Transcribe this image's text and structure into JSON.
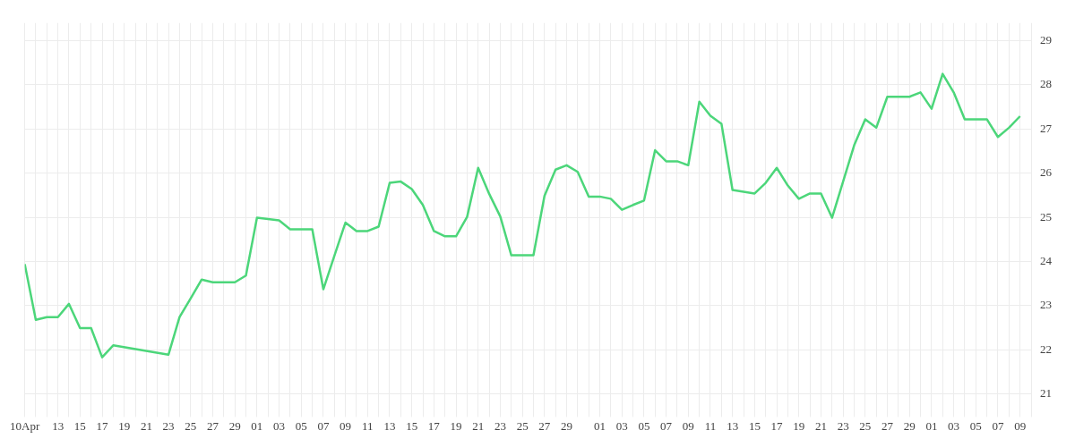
{
  "chart_data": {
    "type": "line",
    "x": [
      "--04-10",
      "--04-11",
      "--04-12",
      "--04-13",
      "--04-14",
      "--04-15",
      "--04-16",
      "--04-17",
      "--04-18",
      "--04-23",
      "--04-24",
      "--04-25",
      "--04-26",
      "--04-27",
      "--04-28",
      "--04-29",
      "--04-30",
      "--05-01",
      "--05-03",
      "--05-04",
      "--05-05",
      "--05-06",
      "--05-07",
      "--05-08",
      "--05-09",
      "--05-10",
      "--05-11",
      "--05-12",
      "--05-13",
      "--05-14",
      "--05-15",
      "--05-16",
      "--05-17",
      "--05-18",
      "--05-19",
      "--05-20",
      "--05-21",
      "--05-22",
      "--05-23",
      "--05-24",
      "--05-25",
      "--05-26",
      "--05-27",
      "--05-28",
      "--05-29",
      "--05-30",
      "--05-31",
      "--06-01",
      "--06-02",
      "--06-03",
      "--06-04",
      "--06-05",
      "--06-06",
      "--06-07",
      "--06-08",
      "--06-09",
      "--06-10",
      "--06-11",
      "--06-12",
      "--06-13",
      "--06-14",
      "--06-15",
      "--06-16",
      "--06-17",
      "--06-18",
      "--06-19",
      "--06-20",
      "--06-21",
      "--06-22",
      "--06-23",
      "--06-24",
      "--06-25",
      "--06-26",
      "--06-27",
      "--06-28",
      "--06-29",
      "--06-30",
      "--07-01",
      "--07-02",
      "--07-03",
      "--07-04",
      "--07-05",
      "--07-06",
      "--07-07",
      "--07-08",
      "--07-09"
    ],
    "series": [
      {
        "color": "#4cd67a",
        "values": [
          23.94,
          22.68,
          22.74,
          22.74,
          23.04,
          22.49,
          22.49,
          21.83,
          22.1,
          21.89,
          22.74,
          23.16,
          23.59,
          23.53,
          23.53,
          23.53,
          23.68,
          24.99,
          24.93,
          24.73,
          24.73,
          24.73,
          23.37,
          24.13,
          24.88,
          24.69,
          24.69,
          24.79,
          25.78,
          25.81,
          25.64,
          25.28,
          24.69,
          24.57,
          24.57,
          25.01,
          26.12,
          25.53,
          25.02,
          24.14,
          24.14,
          24.14,
          25.49,
          26.08,
          26.18,
          26.03,
          25.47,
          25.47,
          25.42,
          25.17,
          25.28,
          25.38,
          26.52,
          26.27,
          26.27,
          26.18,
          27.62,
          27.3,
          27.12,
          25.62,
          25.58,
          25.54,
          25.78,
          26.12,
          25.72,
          25.42,
          25.54,
          25.54,
          24.99,
          25.81,
          26.63,
          27.22,
          27.03,
          27.73,
          27.73,
          27.73,
          27.83,
          27.46,
          28.25,
          27.83,
          27.22,
          27.22,
          27.22,
          26.82,
          27.03,
          27.29
        ]
      }
    ],
    "xlim": [
      "--04-10",
      "--07-10"
    ],
    "xticks": [
      {
        "value": "--04-10",
        "label": "10Apr"
      },
      {
        "value": "--04-11",
        "label": null
      },
      {
        "value": "--04-12",
        "label": null
      },
      {
        "value": "--04-13",
        "label": "13"
      },
      {
        "value": "--04-14",
        "label": null
      },
      {
        "value": "--04-15",
        "label": "15"
      },
      {
        "value": "--04-16",
        "label": null
      },
      {
        "value": "--04-17",
        "label": "17"
      },
      {
        "value": "--04-18",
        "label": null
      },
      {
        "value": "--04-19",
        "label": "19"
      },
      {
        "value": "--04-20",
        "label": null
      },
      {
        "value": "--04-21",
        "label": "21"
      },
      {
        "value": "--04-22",
        "label": null
      },
      {
        "value": "--04-23",
        "label": "23"
      },
      {
        "value": "--04-24",
        "label": null
      },
      {
        "value": "--04-25",
        "label": "25"
      },
      {
        "value": "--04-26",
        "label": null
      },
      {
        "value": "--04-27",
        "label": "27"
      },
      {
        "value": "--04-28",
        "label": null
      },
      {
        "value": "--04-29",
        "label": "29"
      },
      {
        "value": "--04-30",
        "label": null
      },
      {
        "value": "--05-01",
        "label": "01"
      },
      {
        "value": "--05-02",
        "label": null
      },
      {
        "value": "--05-03",
        "label": "03"
      },
      {
        "value": "--05-04",
        "label": null
      },
      {
        "value": "--05-05",
        "label": "05"
      },
      {
        "value": "--05-06",
        "label": null
      },
      {
        "value": "--05-07",
        "label": "07"
      },
      {
        "value": "--05-08",
        "label": null
      },
      {
        "value": "--05-09",
        "label": "09"
      },
      {
        "value": "--05-10",
        "label": null
      },
      {
        "value": "--05-11",
        "label": "11"
      },
      {
        "value": "--05-12",
        "label": null
      },
      {
        "value": "--05-13",
        "label": "13"
      },
      {
        "value": "--05-14",
        "label": null
      },
      {
        "value": "--05-15",
        "label": "15"
      },
      {
        "value": "--05-16",
        "label": null
      },
      {
        "value": "--05-17",
        "label": "17"
      },
      {
        "value": "--05-18",
        "label": null
      },
      {
        "value": "--05-19",
        "label": "19"
      },
      {
        "value": "--05-20",
        "label": null
      },
      {
        "value": "--05-21",
        "label": "21"
      },
      {
        "value": "--05-22",
        "label": null
      },
      {
        "value": "--05-23",
        "label": "23"
      },
      {
        "value": "--05-24",
        "label": null
      },
      {
        "value": "--05-25",
        "label": "25"
      },
      {
        "value": "--05-26",
        "label": null
      },
      {
        "value": "--05-27",
        "label": "27"
      },
      {
        "value": "--05-28",
        "label": null
      },
      {
        "value": "--05-29",
        "label": "29"
      },
      {
        "value": "--05-30",
        "label": null
      },
      {
        "value": "--05-31",
        "label": null
      },
      {
        "value": "--06-01",
        "label": "01"
      },
      {
        "value": "--06-02",
        "label": null
      },
      {
        "value": "--06-03",
        "label": "03"
      },
      {
        "value": "--06-04",
        "label": null
      },
      {
        "value": "--06-05",
        "label": "05"
      },
      {
        "value": "--06-06",
        "label": null
      },
      {
        "value": "--06-07",
        "label": "07"
      },
      {
        "value": "--06-08",
        "label": null
      },
      {
        "value": "--06-09",
        "label": "09"
      },
      {
        "value": "--06-10",
        "label": null
      },
      {
        "value": "--06-11",
        "label": "11"
      },
      {
        "value": "--06-12",
        "label": null
      },
      {
        "value": "--06-13",
        "label": "13"
      },
      {
        "value": "--06-14",
        "label": null
      },
      {
        "value": "--06-15",
        "label": "15"
      },
      {
        "value": "--06-16",
        "label": null
      },
      {
        "value": "--06-17",
        "label": "17"
      },
      {
        "value": "--06-18",
        "label": null
      },
      {
        "value": "--06-19",
        "label": "19"
      },
      {
        "value": "--06-20",
        "label": null
      },
      {
        "value": "--06-21",
        "label": "21"
      },
      {
        "value": "--06-22",
        "label": null
      },
      {
        "value": "--06-23",
        "label": "23"
      },
      {
        "value": "--06-24",
        "label": null
      },
      {
        "value": "--06-25",
        "label": "25"
      },
      {
        "value": "--06-26",
        "label": null
      },
      {
        "value": "--06-27",
        "label": "27"
      },
      {
        "value": "--06-28",
        "label": null
      },
      {
        "value": "--06-29",
        "label": "29"
      },
      {
        "value": "--06-30",
        "label": null
      },
      {
        "value": "--07-01",
        "label": "01"
      },
      {
        "value": "--07-02",
        "label": null
      },
      {
        "value": "--07-03",
        "label": "03"
      },
      {
        "value": "--07-04",
        "label": null
      },
      {
        "value": "--07-05",
        "label": "05"
      },
      {
        "value": "--07-06",
        "label": null
      },
      {
        "value": "--07-07",
        "label": "07"
      },
      {
        "value": "--07-08",
        "label": null
      },
      {
        "value": "--07-09",
        "label": "09"
      },
      {
        "value": "--07-10",
        "label": null
      }
    ],
    "ylim": [
      20.6,
      29.4
    ],
    "yticks": [
      21,
      22,
      23,
      24,
      25,
      26,
      27,
      28,
      29
    ],
    "grid": true,
    "legend": false,
    "marker": "none",
    "line_style": "solid"
  }
}
